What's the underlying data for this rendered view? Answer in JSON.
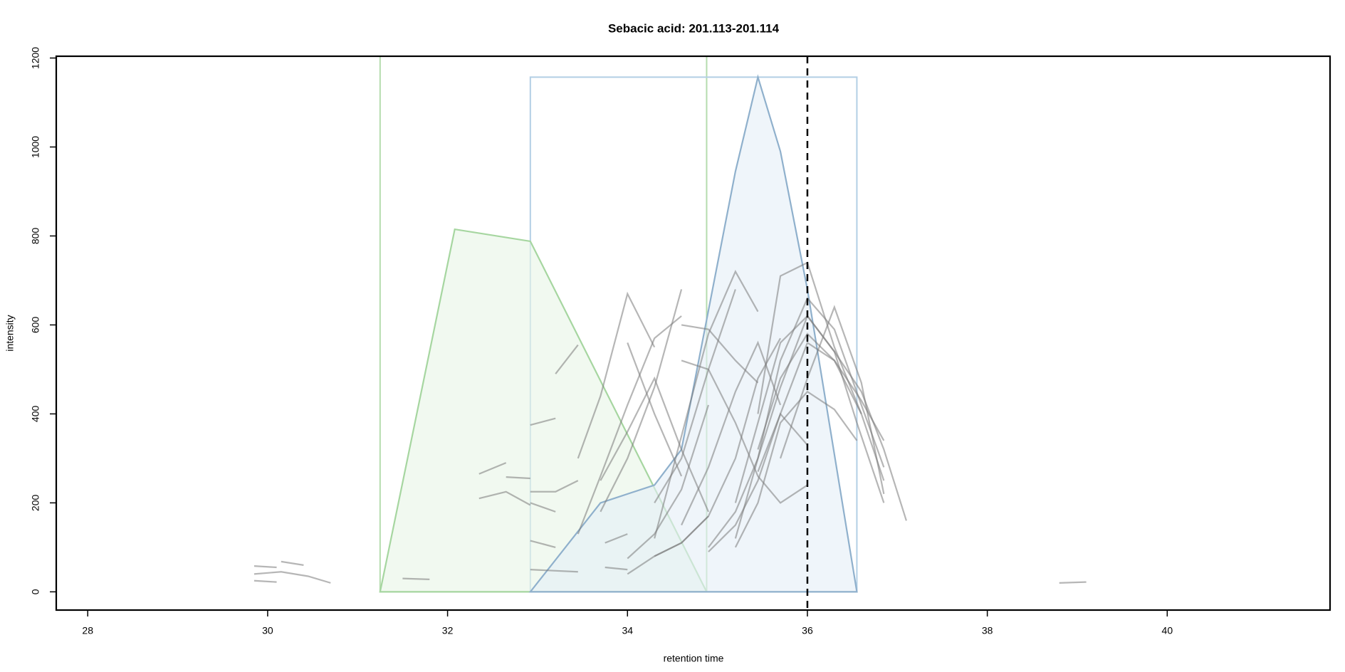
{
  "chart_data": {
    "type": "line",
    "title": "Sebacic acid: 201.113-201.114",
    "xlabel": "retention time",
    "ylabel": "intensity",
    "xlim": [
      27.65,
      41.81
    ],
    "ylim": [
      -41,
      1204
    ],
    "xticks": [
      28,
      30,
      32,
      34,
      36,
      38,
      40
    ],
    "yticks": [
      0,
      200,
      400,
      600,
      800,
      1000,
      1200
    ],
    "rt_marker": 36,
    "boxes": [
      {
        "color": "#b5dcae",
        "x0": 31.25,
        "x1": 34.88,
        "y0": 0,
        "y1": 1204
      },
      {
        "color": "#b3cfe5",
        "x0": 32.92,
        "x1": 36.55,
        "y0": 0,
        "y1": 1157
      }
    ],
    "peaks": [
      {
        "color": "#a6d6a0",
        "fill": "#e8f5e6",
        "x": [
          31.25,
          32.08,
          32.92,
          34.88
        ],
        "values": [
          0,
          815,
          788,
          0
        ]
      },
      {
        "color": "#8fb0cc",
        "fill": "#e4eef7",
        "x": [
          32.92,
          33.7,
          34.3,
          34.6,
          35.2,
          35.45,
          35.7,
          36.0,
          36.55
        ],
        "values": [
          0,
          200,
          240,
          320,
          945,
          1157,
          990,
          680,
          0
        ]
      }
    ],
    "series": [
      {
        "color": "#7a7a7a",
        "x": [
          29.85,
          30.1
        ],
        "values": [
          58,
          55
        ]
      },
      {
        "color": "#7a7a7a",
        "x": [
          29.85,
          30.15,
          30.45,
          30.7
        ],
        "values": [
          40,
          45,
          35,
          20
        ]
      },
      {
        "color": "#7a7a7a",
        "x": [
          29.85,
          30.1
        ],
        "values": [
          25,
          22
        ]
      },
      {
        "color": "#7a7a7a",
        "x": [
          30.15,
          30.4
        ],
        "values": [
          68,
          60
        ]
      },
      {
        "color": "#7a7a7a",
        "x": [
          31.5,
          31.8
        ],
        "values": [
          30,
          28
        ]
      },
      {
        "color": "#7a7a7a",
        "x": [
          32.35,
          32.65
        ],
        "values": [
          265,
          290
        ]
      },
      {
        "color": "#7a7a7a",
        "x": [
          32.35,
          32.65,
          32.92
        ],
        "values": [
          210,
          225,
          195
        ]
      },
      {
        "color": "#7a7a7a",
        "x": [
          32.65,
          32.92
        ],
        "values": [
          258,
          255
        ]
      },
      {
        "color": "#7a7a7a",
        "x": [
          32.92,
          33.2
        ],
        "values": [
          375,
          390
        ]
      },
      {
        "color": "#7a7a7a",
        "x": [
          32.92,
          33.2,
          33.45
        ],
        "values": [
          225,
          225,
          250
        ]
      },
      {
        "color": "#7a7a7a",
        "x": [
          32.92,
          33.2
        ],
        "values": [
          200,
          180
        ]
      },
      {
        "color": "#7a7a7a",
        "x": [
          32.92,
          33.2
        ],
        "values": [
          115,
          100
        ]
      },
      {
        "color": "#7a7a7a",
        "x": [
          32.92,
          33.45
        ],
        "values": [
          50,
          45
        ]
      },
      {
        "color": "#7a7a7a",
        "x": [
          33.2,
          33.45
        ],
        "values": [
          490,
          555
        ]
      },
      {
        "color": "#7a7a7a",
        "x": [
          33.45,
          33.7,
          34.0,
          34.3
        ],
        "values": [
          300,
          440,
          670,
          550
        ]
      },
      {
        "color": "#7a7a7a",
        "x": [
          33.45,
          33.7,
          34.0,
          34.3,
          34.6
        ],
        "values": [
          130,
          260,
          420,
          570,
          620
        ]
      },
      {
        "color": "#7a7a7a",
        "x": [
          33.7,
          34.0,
          34.3,
          34.6
        ],
        "values": [
          180,
          300,
          460,
          680
        ]
      },
      {
        "color": "#7a7a7a",
        "x": [
          33.7,
          34.0,
          34.3,
          34.6,
          34.9
        ],
        "values": [
          250,
          360,
          480,
          320,
          180
        ]
      },
      {
        "color": "#7a7a7a",
        "x": [
          33.75,
          34.0
        ],
        "values": [
          110,
          130
        ]
      },
      {
        "color": "#7a7a7a",
        "x": [
          33.75,
          34.0
        ],
        "values": [
          55,
          50
        ]
      },
      {
        "color": "#7a7a7a",
        "x": [
          34.0,
          34.3,
          34.6,
          34.9
        ],
        "values": [
          40,
          80,
          110,
          170
        ]
      },
      {
        "color": "#7a7a7a",
        "x": [
          34.0,
          34.3,
          34.6,
          34.9
        ],
        "values": [
          75,
          130,
          230,
          420
        ]
      },
      {
        "color": "#7a7a7a",
        "x": [
          34.0,
          34.3,
          34.6
        ],
        "values": [
          560,
          400,
          260
        ]
      },
      {
        "color": "#7a7a7a",
        "x": [
          34.3,
          34.6,
          34.9,
          35.2
        ],
        "values": [
          200,
          300,
          500,
          680
        ]
      },
      {
        "color": "#7a7a7a",
        "x": [
          34.3,
          34.6,
          34.9,
          35.2,
          35.45
        ],
        "values": [
          120,
          350,
          580,
          720,
          630
        ]
      },
      {
        "color": "#7a7a7a",
        "x": [
          34.3,
          34.6,
          34.9,
          35.2,
          35.45,
          35.7
        ],
        "values": [
          80,
          110,
          170,
          300,
          480,
          570
        ]
      },
      {
        "color": "#7a7a7a",
        "x": [
          34.6,
          34.9,
          35.2,
          35.45,
          35.7
        ],
        "values": [
          150,
          280,
          450,
          560,
          420
        ]
      },
      {
        "color": "#7a7a7a",
        "x": [
          34.6,
          34.9,
          35.2,
          35.45,
          35.7,
          36.0
        ],
        "values": [
          520,
          500,
          380,
          260,
          200,
          240
        ]
      },
      {
        "color": "#7a7a7a",
        "x": [
          34.6,
          34.9,
          35.2,
          35.45
        ],
        "values": [
          600,
          590,
          520,
          470
        ]
      },
      {
        "color": "#7a7a7a",
        "x": [
          34.9,
          35.2,
          35.45,
          35.7,
          36.0,
          36.3,
          36.55,
          36.85
        ],
        "values": [
          100,
          180,
          300,
          460,
          620,
          540,
          380,
          200
        ]
      },
      {
        "color": "#7a7a7a",
        "x": [
          34.9,
          35.2,
          35.45,
          35.7,
          36.0,
          36.3,
          36.6,
          36.85
        ],
        "values": [
          90,
          150,
          250,
          400,
          560,
          520,
          430,
          340
        ]
      },
      {
        "color": "#7a7a7a",
        "x": [
          35.2,
          35.45,
          35.7,
          36.0,
          36.3,
          36.6,
          36.85
        ],
        "values": [
          120,
          300,
          520,
          660,
          590,
          420,
          280
        ]
      },
      {
        "color": "#7a7a7a",
        "x": [
          35.2,
          35.45,
          35.7,
          36.0,
          36.3,
          36.6,
          36.85,
          37.1
        ],
        "values": [
          200,
          380,
          560,
          620,
          540,
          450,
          320,
          160
        ]
      },
      {
        "color": "#7a7a7a",
        "x": [
          35.2,
          35.45,
          35.7,
          36.0,
          36.3,
          36.55
        ],
        "values": [
          100,
          200,
          380,
          450,
          410,
          340
        ]
      },
      {
        "color": "#7a7a7a",
        "x": [
          35.45,
          35.7,
          36.0,
          36.3,
          36.6
        ],
        "values": [
          320,
          480,
          580,
          520,
          400
        ]
      },
      {
        "color": "#7a7a7a",
        "x": [
          35.45,
          35.7,
          36.0,
          36.3,
          36.6,
          36.85
        ],
        "values": [
          400,
          710,
          740,
          550,
          400,
          250
        ]
      },
      {
        "color": "#7a7a7a",
        "x": [
          35.7,
          36.0,
          36.3,
          36.6,
          36.85
        ],
        "values": [
          300,
          480,
          640,
          470,
          220
        ]
      },
      {
        "color": "#7a7a7a",
        "x": [
          35.45,
          35.7,
          36.0
        ],
        "values": [
          270,
          400,
          330
        ]
      },
      {
        "color": "#7a7a7a",
        "x": [
          38.8,
          39.1
        ],
        "values": [
          20,
          22
        ]
      }
    ]
  }
}
